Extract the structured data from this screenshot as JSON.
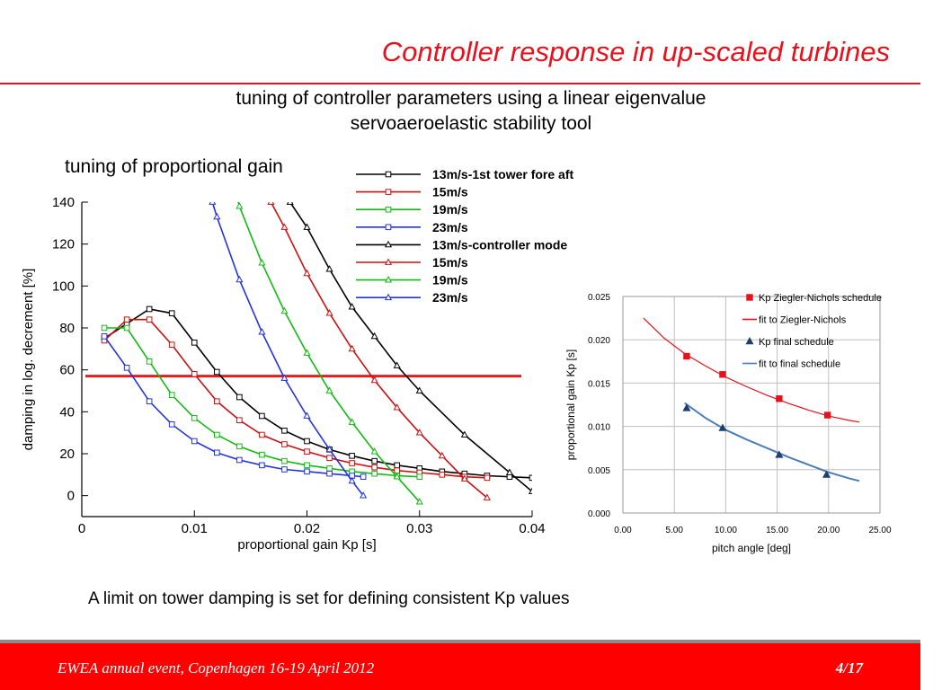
{
  "slide": {
    "title": "Controller response in up-scaled turbines",
    "subtitle_line1": "tuning of controller parameters using a linear eigenvalue",
    "subtitle_line2": "servoaeroelastic stability tool",
    "section_label": "tuning of proportional gain",
    "note": "A limit on tower damping is set for defining consistent Kp values"
  },
  "footer": {
    "event": "EWEA annual event, Copenhagen 16-19 April 2012",
    "page": "4/17"
  },
  "colors": {
    "accent": "#e8101b",
    "footer_bg": "#ff0000"
  },
  "chart_data": [
    {
      "type": "line",
      "title": "",
      "xlabel": "proportional gain Kp [s]",
      "ylabel": "damping in log. decrement [%]",
      "xlim": [
        0,
        0.04
      ],
      "ylim": [
        -10,
        140
      ],
      "xticks": [
        0,
        0.01,
        0.02,
        0.03,
        0.04
      ],
      "xtick_labels": [
        "0",
        "0.01",
        "0.02",
        "0.03",
        "0.04"
      ],
      "yticks": [
        0,
        20,
        40,
        60,
        80,
        100,
        120,
        140
      ],
      "ytick_labels": [
        "0",
        "20",
        "40",
        "60",
        "80",
        "100",
        "120",
        "140"
      ],
      "grid": false,
      "legend_position": "top-right",
      "reference_line": {
        "y": 57,
        "color": "#e02020"
      },
      "series": [
        {
          "name": "13m/s-1st tower fore aft",
          "color": "#000000",
          "marker": "square",
          "x": [
            0.002,
            0.004,
            0.006,
            0.008,
            0.01,
            0.012,
            0.014,
            0.016,
            0.018,
            0.02,
            0.022,
            0.024,
            0.026,
            0.028,
            0.03,
            0.032,
            0.034,
            0.036,
            0.038,
            0.04
          ],
          "y": [
            75,
            82,
            89,
            87,
            73,
            59,
            47,
            38,
            31,
            26,
            22,
            19,
            16.5,
            14.5,
            13,
            11.5,
            10.5,
            9.5,
            9,
            8.5
          ]
        },
        {
          "name": "15m/s",
          "color": "#cc1111",
          "marker": "square",
          "x": [
            0.002,
            0.004,
            0.006,
            0.008,
            0.01,
            0.012,
            0.014,
            0.016,
            0.018,
            0.02,
            0.022,
            0.024,
            0.026,
            0.028,
            0.03,
            0.032,
            0.034,
            0.036
          ],
          "y": [
            74,
            84,
            84,
            72,
            58,
            45,
            36,
            29,
            24.5,
            21,
            18,
            15.5,
            13.5,
            12,
            11,
            10,
            9,
            8.5
          ]
        },
        {
          "name": "19m/s",
          "color": "#11bb11",
          "marker": "square",
          "x": [
            0.002,
            0.004,
            0.006,
            0.008,
            0.01,
            0.012,
            0.014,
            0.016,
            0.018,
            0.02,
            0.022,
            0.024,
            0.026,
            0.028,
            0.03
          ],
          "y": [
            80,
            80,
            64,
            48,
            37,
            29,
            23.5,
            19.5,
            16.5,
            14.5,
            13,
            11.5,
            10.5,
            9.5,
            9
          ]
        },
        {
          "name": "23m/s",
          "color": "#2233dd",
          "marker": "square",
          "x": [
            0.002,
            0.004,
            0.006,
            0.008,
            0.01,
            0.012,
            0.014,
            0.016,
            0.018,
            0.02,
            0.022,
            0.024,
            0.025
          ],
          "y": [
            76,
            61,
            45,
            34,
            26,
            20.5,
            17,
            14.5,
            12.5,
            11.5,
            10.5,
            9.5,
            9
          ]
        },
        {
          "name": "13m/s-controller mode",
          "color": "#000000",
          "marker": "triangle",
          "x": [
            0.0185,
            0.02,
            0.022,
            0.024,
            0.026,
            0.028,
            0.03,
            0.034,
            0.038,
            0.04
          ],
          "y": [
            140,
            128,
            108,
            90,
            76,
            62,
            50,
            29,
            11,
            2
          ]
        },
        {
          "name": "15m/s",
          "color": "#cc1111",
          "marker": "triangle",
          "x": [
            0.0168,
            0.018,
            0.02,
            0.022,
            0.024,
            0.026,
            0.028,
            0.03,
            0.032,
            0.034,
            0.036
          ],
          "y": [
            140,
            128,
            106,
            87,
            70,
            55,
            42,
            30,
            19,
            8,
            -1
          ]
        },
        {
          "name": "19m/s",
          "color": "#11bb11",
          "marker": "triangle",
          "x": [
            0.0138,
            0.014,
            0.016,
            0.018,
            0.02,
            0.022,
            0.024,
            0.026,
            0.028,
            0.03
          ],
          "y": [
            142,
            138,
            111,
            88,
            68,
            50,
            35,
            21,
            9,
            -3
          ]
        },
        {
          "name": "23m/s",
          "color": "#2233dd",
          "marker": "triangle",
          "x": [
            0.0116,
            0.012,
            0.014,
            0.016,
            0.018,
            0.02,
            0.022,
            0.024,
            0.025
          ],
          "y": [
            140,
            133,
            103,
            78,
            56,
            38,
            22,
            7,
            0
          ]
        }
      ]
    },
    {
      "type": "scatter",
      "title": "",
      "xlabel": "pitch angle [deg]",
      "ylabel": "proportional gain Kp [s]",
      "xlim": [
        0,
        25
      ],
      "ylim": [
        0,
        0.025
      ],
      "xticks": [
        0,
        5,
        10,
        15,
        20,
        25
      ],
      "xtick_labels": [
        "0.00",
        "5.00",
        "10.00",
        "15.00",
        "20.00",
        "25.00"
      ],
      "yticks": [
        0,
        0.005,
        0.01,
        0.015,
        0.02,
        0.025
      ],
      "ytick_labels": [
        "0.000",
        "0.005",
        "0.010",
        "0.015",
        "0.020",
        "0.025"
      ],
      "grid": true,
      "legend_position": "top-right",
      "series": [
        {
          "name": "Kp Ziegler-Nichols schedule",
          "color": "#e8101b",
          "kind": "points",
          "marker": "square",
          "x": [
            6.2,
            9.7,
            15.2,
            19.9
          ],
          "y": [
            0.0181,
            0.016,
            0.0132,
            0.0113
          ]
        },
        {
          "name": "fit to Ziegler-Nichols",
          "color": "#e8101b",
          "kind": "line",
          "x": [
            2.0,
            4.0,
            6.0,
            8.0,
            10.0,
            12.0,
            14.0,
            16.0,
            18.0,
            20.0,
            22.0,
            23.0
          ],
          "y": [
            0.0225,
            0.0202,
            0.0184,
            0.017,
            0.0157,
            0.0146,
            0.0136,
            0.0127,
            0.0119,
            0.0112,
            0.0107,
            0.0105
          ]
        },
        {
          "name": "Kp final schedule",
          "color": "#1f3f6e",
          "kind": "points",
          "marker": "triangle",
          "x": [
            6.2,
            9.7,
            15.2,
            19.8
          ],
          "y": [
            0.0121,
            0.0098,
            0.0067,
            0.0044
          ]
        },
        {
          "name": "fit to final schedule",
          "color": "#4a7ebb",
          "kind": "line",
          "x": [
            6.0,
            8.0,
            10.0,
            12.0,
            14.0,
            16.0,
            18.0,
            20.0,
            22.0,
            23.0
          ],
          "y": [
            0.0127,
            0.011,
            0.0096,
            0.0085,
            0.0075,
            0.0065,
            0.0056,
            0.0047,
            0.004,
            0.0037
          ]
        }
      ]
    }
  ]
}
